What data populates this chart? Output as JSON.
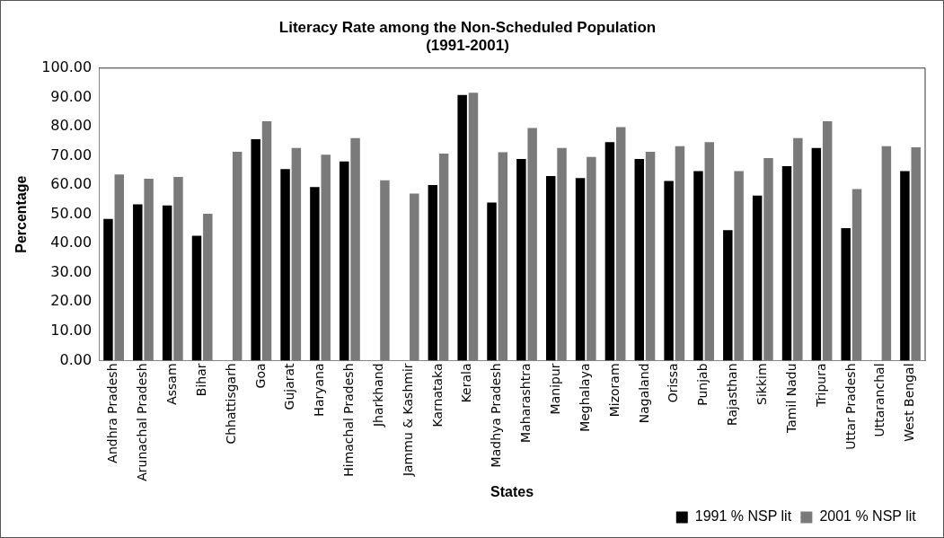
{
  "chart_data": {
    "type": "bar",
    "title": "Literacy Rate among the Non-Scheduled Population\n(1991-2001)",
    "xlabel": "States",
    "ylabel": "Percentage",
    "categories": [
      "Andhra Pradesh",
      "Arunachal Pradesh",
      "Assam",
      "Bihar",
      "Chhattisgarh",
      "Goa",
      "Gujarat",
      "Haryana",
      "Himachal Pradesh",
      "Jharkhand",
      "Jammu & Kashmir",
      "Karnataka",
      "Kerala",
      "Madhya Pradesh",
      "Maharashtra",
      "Manipur",
      "Meghalaya",
      "Mizoram",
      "Nagaland",
      "Orissa",
      "Punjab",
      "Rajasthan",
      "Sikkim",
      "Tamil Nadu",
      "Tripura",
      "Uttar Pradesh",
      "Uttaranchal",
      "West Bengal"
    ],
    "series": [
      {
        "name": "1991 % NSP lit",
        "color": "#000000",
        "values": [
          48.4,
          53.4,
          53.0,
          42.7,
          null,
          75.7,
          65.5,
          59.3,
          68.1,
          null,
          null,
          60.0,
          90.8,
          54.0,
          68.9,
          63.1,
          62.4,
          74.7,
          68.9,
          61.4,
          64.8,
          44.6,
          56.4,
          66.5,
          72.7,
          45.3,
          null,
          64.8
        ]
      },
      {
        "name": "2001 % NSP lit",
        "color": "#7a7a7a",
        "values": [
          63.6,
          62.2,
          62.8,
          50.2,
          71.4,
          81.8,
          72.7,
          70.4,
          76.1,
          61.6,
          57.1,
          70.8,
          91.6,
          71.2,
          79.5,
          72.7,
          69.6,
          79.8,
          71.4,
          73.3,
          74.7,
          64.8,
          69.2,
          76.1,
          81.8,
          58.6,
          73.3,
          72.9
        ]
      }
    ],
    "ylim": [
      0,
      100
    ],
    "yticks": [
      {
        "value": 0,
        "label": "0.00"
      },
      {
        "value": 10,
        "label": "10.00"
      },
      {
        "value": 20,
        "label": "20.00"
      },
      {
        "value": 30,
        "label": "30.00"
      },
      {
        "value": 40,
        "label": "40.00"
      },
      {
        "value": 50,
        "label": "50.00"
      },
      {
        "value": 60,
        "label": "60.00"
      },
      {
        "value": 70,
        "label": "70.00"
      },
      {
        "value": 80,
        "label": "80.00"
      },
      {
        "value": 90,
        "label": "90.00"
      },
      {
        "value": 100,
        "label": "100.00"
      }
    ],
    "grid": false,
    "legend": "bottom right"
  }
}
